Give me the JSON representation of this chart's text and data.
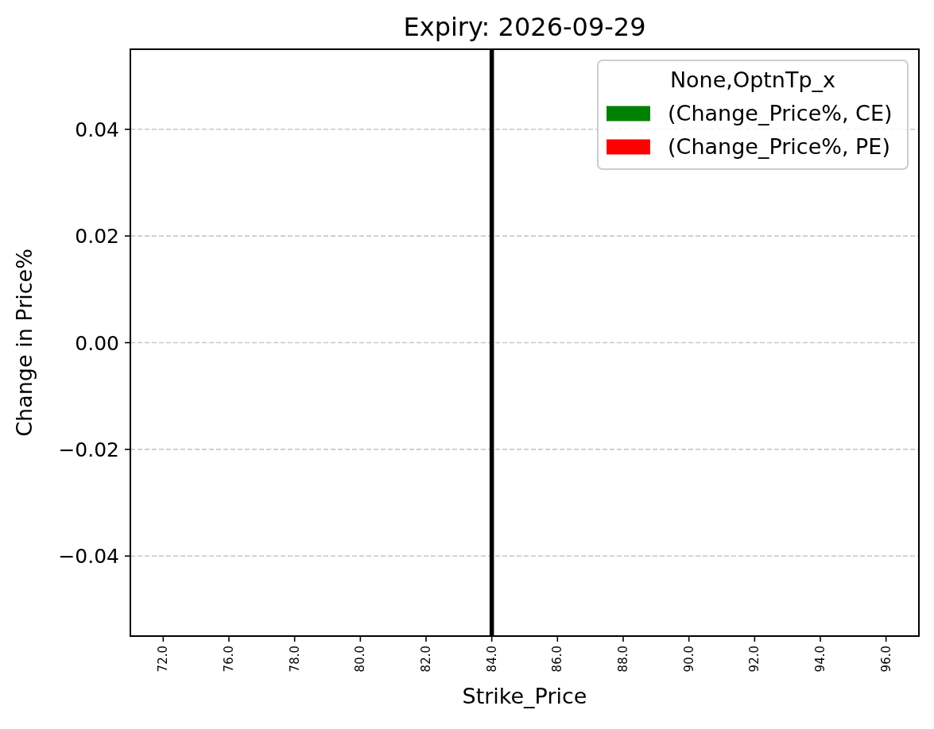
{
  "chart_data": {
    "type": "bar",
    "title": "Expiry: 2026-09-29",
    "xlabel": "Strike_Price",
    "ylabel": "Change in Price%",
    "legend_title": "None,OptnTp_x",
    "categories": [
      "72.0",
      "76.0",
      "78.0",
      "80.0",
      "82.0",
      "84.0",
      "86.0",
      "88.0",
      "90.0",
      "92.0",
      "94.0",
      "96.0"
    ],
    "series": [
      {
        "name": "(Change_Price%, CE)",
        "color": "#008000",
        "values": [
          null,
          null,
          null,
          null,
          null,
          null,
          null,
          null,
          null,
          null,
          null,
          null
        ]
      },
      {
        "name": "(Change_Price%, PE)",
        "color": "#ff0000",
        "values": [
          null,
          null,
          null,
          null,
          null,
          null,
          null,
          null,
          null,
          null,
          null,
          null
        ]
      }
    ],
    "ylim": [
      -0.055,
      0.055
    ],
    "yticks": [
      {
        "value": -0.04,
        "label": "−0.04"
      },
      {
        "value": -0.02,
        "label": "−0.02"
      },
      {
        "value": 0,
        "label": "0.00"
      },
      {
        "value": 0.02,
        "label": "0.02"
      },
      {
        "value": 0.04,
        "label": "0.04"
      }
    ],
    "grid": "y",
    "legend": "top right",
    "ref_lines": [
      {
        "axis": "x",
        "value": "84.0",
        "color": "#000000"
      }
    ]
  }
}
